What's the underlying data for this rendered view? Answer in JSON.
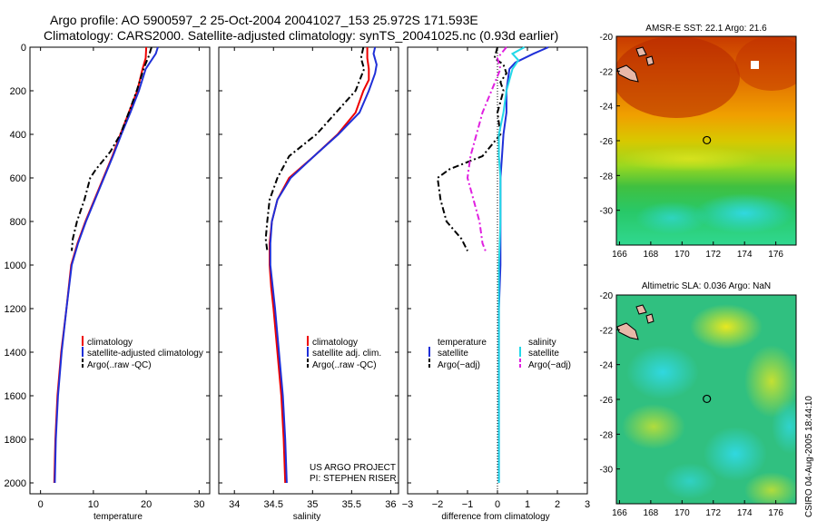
{
  "header": {
    "line1": "Argo profile: AO 5900597_2 25-Oct-2004 20041027_153 25.972S 171.593E",
    "line2": "Climatology: CARS2000. Satellite-adjusted climatology: synTS_20041025.nc (0.93d earlier)"
  },
  "side_note": "CSIRO 04-Aug-2005 18:44:10",
  "project": {
    "line1": "US ARGO PROJECT",
    "line2": "PI: STEPHEN RISER"
  },
  "colors": {
    "climatology": "#ee0000",
    "satellite": "#1f2fd8",
    "argo": "#000000",
    "sat_sal": "#22d8e8",
    "argo_sal": "#e020e0"
  },
  "chart_data": [
    {
      "type": "line",
      "id": "temperature",
      "xlabel": "temperature",
      "ylabel": "",
      "xlim": [
        -2,
        32
      ],
      "ylim": [
        2050,
        0
      ],
      "xticks": [
        "0",
        "10",
        "20",
        "30"
      ],
      "yticks": [
        "0",
        "200",
        "400",
        "600",
        "800",
        "1000",
        "1200",
        "1400",
        "1600",
        "1800",
        "2000"
      ],
      "legend": [
        "climatology",
        "satellite-adjusted climatology",
        "Argo(..raw -QC)"
      ],
      "series": [
        {
          "name": "climatology",
          "points": [
            [
              20.0,
              0
            ],
            [
              19.9,
              50
            ],
            [
              19.3,
              100
            ],
            [
              18.3,
              200
            ],
            [
              16.7,
              300
            ],
            [
              15.1,
              400
            ],
            [
              13.6,
              500
            ],
            [
              11.9,
              600
            ],
            [
              10.2,
              700
            ],
            [
              8.5,
              800
            ],
            [
              7.0,
              900
            ],
            [
              5.8,
              1000
            ],
            [
              4.9,
              1200
            ],
            [
              3.9,
              1400
            ],
            [
              3.2,
              1600
            ],
            [
              2.8,
              1800
            ],
            [
              2.6,
              2000
            ]
          ]
        },
        {
          "name": "satellite",
          "points": [
            [
              22.2,
              0
            ],
            [
              21.8,
              30
            ],
            [
              20.7,
              70
            ],
            [
              19.9,
              100
            ],
            [
              18.6,
              200
            ],
            [
              17.0,
              300
            ],
            [
              15.3,
              400
            ],
            [
              13.7,
              500
            ],
            [
              12.0,
              600
            ],
            [
              10.3,
              700
            ],
            [
              8.6,
              800
            ],
            [
              7.1,
              900
            ],
            [
              5.9,
              1000
            ],
            [
              4.9,
              1200
            ],
            [
              4.0,
              1400
            ],
            [
              3.3,
              1600
            ],
            [
              2.9,
              1800
            ],
            [
              2.7,
              2000
            ]
          ]
        },
        {
          "name": "argo",
          "points": [
            [
              21.0,
              0
            ],
            [
              20.5,
              40
            ],
            [
              19.8,
              80
            ],
            [
              19.5,
              100
            ],
            [
              18.2,
              200
            ],
            [
              16.7,
              300
            ],
            [
              15.1,
              400
            ],
            [
              13.2,
              480
            ],
            [
              10.5,
              560
            ],
            [
              9.4,
              600
            ],
            [
              8.3,
              700
            ],
            [
              6.9,
              800
            ],
            [
              6.1,
              880
            ],
            [
              5.9,
              935
            ]
          ]
        }
      ]
    },
    {
      "type": "line",
      "id": "salinity",
      "xlabel": "salinity",
      "xlim": [
        33.8,
        36.1
      ],
      "ylim": [
        2050,
        0
      ],
      "xticks": [
        "34",
        "34.5",
        "35",
        "35.5",
        "36"
      ],
      "legend": [
        "climatology",
        "satellite adj. clim.",
        "Argo(..raw -QC)"
      ],
      "series": [
        {
          "name": "climatology",
          "points": [
            [
              35.7,
              0
            ],
            [
              35.7,
              50
            ],
            [
              35.72,
              100
            ],
            [
              35.72,
              150
            ],
            [
              35.65,
              200
            ],
            [
              35.55,
              300
            ],
            [
              35.32,
              400
            ],
            [
              35.02,
              500
            ],
            [
              34.7,
              600
            ],
            [
              34.55,
              700
            ],
            [
              34.48,
              800
            ],
            [
              34.45,
              900
            ],
            [
              34.45,
              1000
            ],
            [
              34.47,
              1100
            ],
            [
              34.5,
              1200
            ],
            [
              34.55,
              1400
            ],
            [
              34.6,
              1600
            ],
            [
              34.63,
              1800
            ],
            [
              34.65,
              2000
            ]
          ]
        },
        {
          "name": "satellite",
          "points": [
            [
              35.8,
              0
            ],
            [
              35.78,
              30
            ],
            [
              35.82,
              80
            ],
            [
              35.8,
              120
            ],
            [
              35.72,
              200
            ],
            [
              35.6,
              300
            ],
            [
              35.33,
              400
            ],
            [
              35.02,
              500
            ],
            [
              34.72,
              600
            ],
            [
              34.55,
              700
            ],
            [
              34.48,
              800
            ],
            [
              34.46,
              900
            ],
            [
              34.46,
              1000
            ],
            [
              34.49,
              1100
            ],
            [
              34.52,
              1200
            ],
            [
              34.57,
              1400
            ],
            [
              34.62,
              1600
            ],
            [
              34.65,
              1800
            ],
            [
              34.67,
              2000
            ]
          ]
        },
        {
          "name": "argo",
          "points": [
            [
              35.65,
              0
            ],
            [
              35.62,
              50
            ],
            [
              35.66,
              100
            ],
            [
              35.55,
              200
            ],
            [
              35.3,
              300
            ],
            [
              35.05,
              400
            ],
            [
              34.7,
              500
            ],
            [
              34.55,
              600
            ],
            [
              34.45,
              700
            ],
            [
              34.42,
              800
            ],
            [
              34.4,
              880
            ],
            [
              34.42,
              935
            ]
          ]
        }
      ]
    },
    {
      "type": "line",
      "id": "difference",
      "xlabel": "difference from climatology",
      "xlim": [
        -3,
        3
      ],
      "ylim": [
        2050,
        0
      ],
      "xticks": [
        "−3",
        "−2",
        "−1",
        "0",
        "1",
        "2",
        "3"
      ],
      "legend": [
        "temperature",
        "satellite",
        "Argo(−adj)",
        "salinity",
        "satellite",
        "Argo(−adj)"
      ],
      "series": [
        {
          "name": "temperature satellite",
          "points": [
            [
              1.7,
              0
            ],
            [
              1.2,
              30
            ],
            [
              0.6,
              70
            ],
            [
              0.4,
              100
            ],
            [
              0.3,
              200
            ],
            [
              0.3,
              300
            ],
            [
              0.2,
              400
            ],
            [
              0.15,
              500
            ],
            [
              0.1,
              600
            ],
            [
              0.1,
              800
            ],
            [
              0.1,
              1000
            ],
            [
              0.05,
              1200
            ],
            [
              0.05,
              1400
            ],
            [
              0.05,
              1600
            ],
            [
              0.05,
              1800
            ],
            [
              0.05,
              2000
            ]
          ]
        },
        {
          "name": "temperature argo",
          "points": [
            [
              0.0,
              0
            ],
            [
              -0.1,
              50
            ],
            [
              0.2,
              80
            ],
            [
              0.3,
              120
            ],
            [
              0.1,
              160
            ],
            [
              0.2,
              200
            ],
            [
              0.0,
              300
            ],
            [
              0.1,
              400
            ],
            [
              -0.5,
              500
            ],
            [
              -1.6,
              560
            ],
            [
              -2.0,
              600
            ],
            [
              -1.9,
              700
            ],
            [
              -1.7,
              800
            ],
            [
              -1.2,
              880
            ],
            [
              -1.0,
              935
            ]
          ]
        },
        {
          "name": "salinity satellite",
          "points": [
            [
              0.9,
              0
            ],
            [
              0.5,
              30
            ],
            [
              0.7,
              60
            ],
            [
              0.5,
              100
            ],
            [
              0.3,
              200
            ],
            [
              0.2,
              300
            ],
            [
              0.05,
              400
            ],
            [
              0.05,
              500
            ],
            [
              0.1,
              600
            ],
            [
              0.1,
              800
            ],
            [
              0.05,
              1000
            ],
            [
              0.05,
              1200
            ],
            [
              0.05,
              1400
            ],
            [
              0.05,
              1600
            ],
            [
              0.05,
              1800
            ],
            [
              0.05,
              2000
            ]
          ]
        },
        {
          "name": "salinity argo",
          "points": [
            [
              0.3,
              0
            ],
            [
              0.0,
              50
            ],
            [
              0.1,
              100
            ],
            [
              -0.2,
              200
            ],
            [
              -0.5,
              300
            ],
            [
              -0.7,
              400
            ],
            [
              -0.9,
              500
            ],
            [
              -1.0,
              600
            ],
            [
              -0.8,
              700
            ],
            [
              -0.6,
              800
            ],
            [
              -0.5,
              900
            ],
            [
              -0.4,
              935
            ]
          ]
        }
      ]
    }
  ],
  "maps": [
    {
      "title": "AMSR-E SST: 22.1 Argo: 21.6",
      "xticks": [
        "166",
        "168",
        "170",
        "172",
        "174",
        "176"
      ],
      "yticks": [
        "-20",
        "-22",
        "-24",
        "-26",
        "-28",
        "-30"
      ],
      "marker": [
        171.59,
        -25.97
      ]
    },
    {
      "title": "Altimetric SLA: 0.036 Argo: NaN",
      "xticks": [
        "166",
        "168",
        "170",
        "172",
        "174",
        "176"
      ],
      "yticks": [
        "-20",
        "-22",
        "-24",
        "-26",
        "-28",
        "-30"
      ],
      "marker": [
        171.59,
        -25.97
      ]
    }
  ]
}
